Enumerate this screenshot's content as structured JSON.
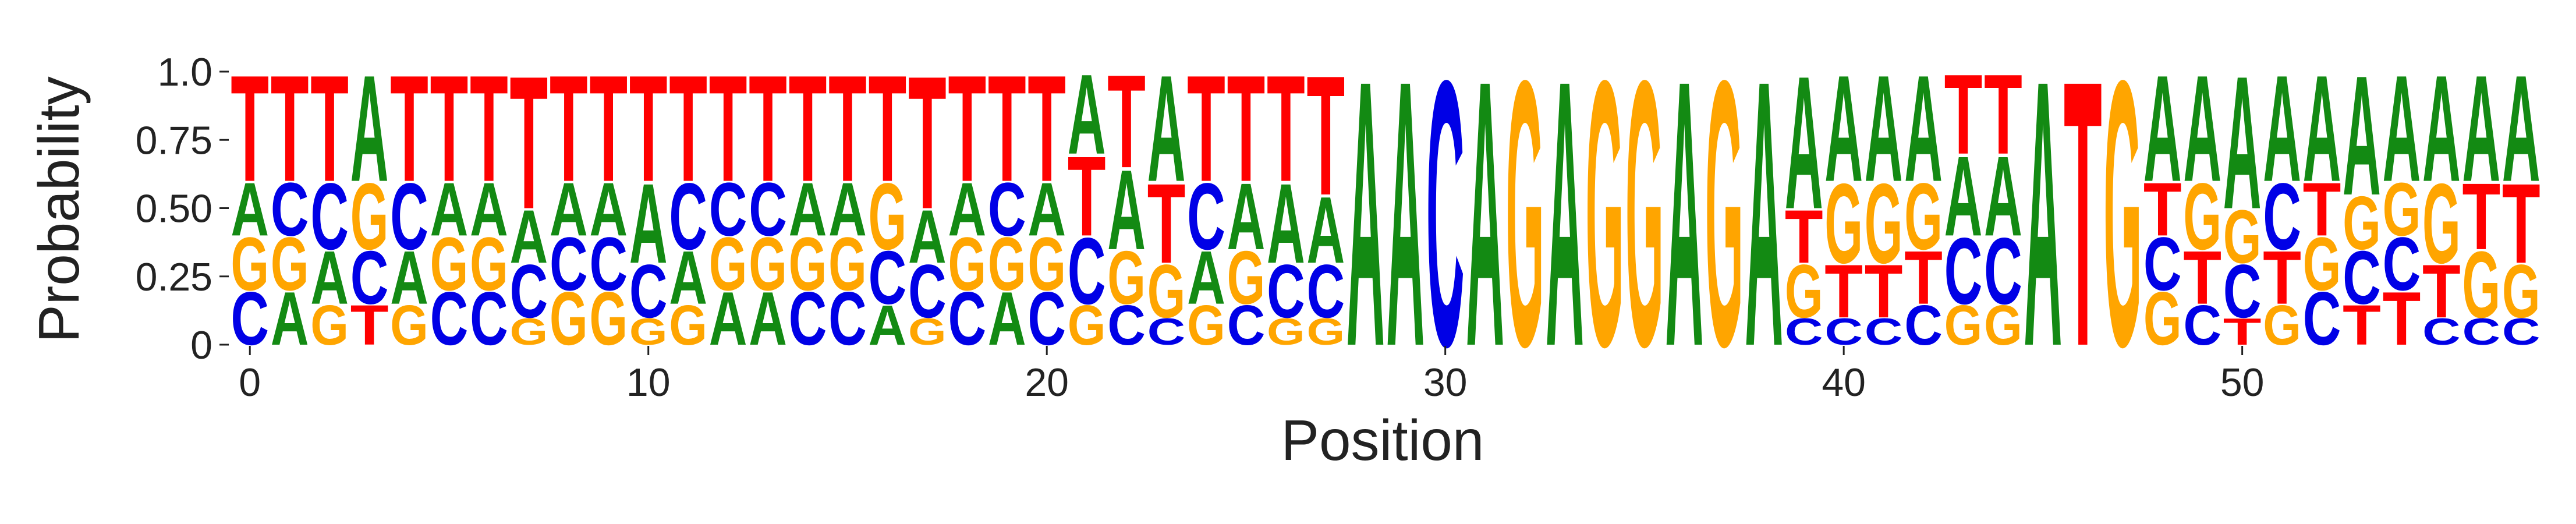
{
  "chart_data": {
    "type": "sequence-logo",
    "xlabel": "Position",
    "ylabel": "Probability",
    "x_range": [
      -0.5,
      57.5
    ],
    "ylim": [
      0,
      1
    ],
    "yticks": [
      "0",
      "0.25",
      "0.50",
      "0.75",
      "1.0"
    ],
    "ytick_values": [
      0,
      0.25,
      0.5,
      0.75,
      1.0
    ],
    "xticks": [
      "0",
      "10",
      "20",
      "30",
      "40",
      "50"
    ],
    "xtick_values": [
      0,
      10,
      20,
      30,
      40,
      50
    ],
    "grid": false,
    "colors": {
      "A": "#138a13",
      "C": "#0000e6",
      "G": "#ffa500",
      "T": "#ff0000"
    },
    "positions": [
      {
        "C": 0.2,
        "G": 0.2,
        "A": 0.2,
        "T": 0.4
      },
      {
        "A": 0.2,
        "G": 0.2,
        "C": 0.2,
        "T": 0.4
      },
      {
        "G": 0.15,
        "C": 0.25,
        "A": 0.2,
        "T": 0.4
      },
      {
        "T": 0.15,
        "G": 0.25,
        "C": 0.2,
        "A": 0.4
      },
      {
        "G": 0.15,
        "C": 0.25,
        "A": 0.2,
        "T": 0.4
      },
      {
        "C": 0.2,
        "G": 0.2,
        "A": 0.2,
        "T": 0.4
      },
      {
        "C": 0.2,
        "G": 0.2,
        "A": 0.2,
        "T": 0.4
      },
      {
        "G": 0.1,
        "C": 0.2,
        "A": 0.2,
        "T": 0.5
      },
      {
        "G": 0.2,
        "C": 0.2,
        "A": 0.2,
        "T": 0.4
      },
      {
        "G": 0.2,
        "C": 0.2,
        "A": 0.2,
        "T": 0.4
      },
      {
        "G": 0.1,
        "C": 0.2,
        "A": 0.3,
        "T": 0.4
      },
      {
        "G": 0.15,
        "A": 0.2,
        "C": 0.25,
        "T": 0.4
      },
      {
        "A": 0.2,
        "G": 0.2,
        "C": 0.2,
        "T": 0.4
      },
      {
        "A": 0.2,
        "G": 0.2,
        "C": 0.2,
        "T": 0.4
      },
      {
        "C": 0.2,
        "G": 0.2,
        "A": 0.2,
        "T": 0.4
      },
      {
        "C": 0.2,
        "G": 0.2,
        "A": 0.2,
        "T": 0.4
      },
      {
        "A": 0.15,
        "G": 0.25,
        "C": 0.2,
        "T": 0.4
      },
      {
        "G": 0.1,
        "C": 0.2,
        "A": 0.2,
        "T": 0.5
      },
      {
        "C": 0.2,
        "G": 0.2,
        "A": 0.2,
        "T": 0.4
      },
      {
        "A": 0.2,
        "G": 0.2,
        "C": 0.2,
        "T": 0.4
      },
      {
        "C": 0.2,
        "G": 0.2,
        "A": 0.2,
        "T": 0.4
      },
      {
        "G": 0.15,
        "C": 0.25,
        "T": 0.3,
        "A": 0.3
      },
      {
        "C": 0.15,
        "G": 0.2,
        "A": 0.3,
        "T": 0.35
      },
      {
        "C": 0.1,
        "G": 0.2,
        "T": 0.3,
        "A": 0.4
      },
      {
        "G": 0.15,
        "C": 0.25,
        "A": 0.2,
        "T": 0.4
      },
      {
        "C": 0.15,
        "G": 0.2,
        "A": 0.25,
        "T": 0.4
      },
      {
        "G": 0.1,
        "C": 0.2,
        "A": 0.3,
        "T": 0.4
      },
      {
        "G": 0.1,
        "C": 0.2,
        "A": 0.25,
        "T": 0.45
      },
      {
        "A": 1.0
      },
      {
        "A": 1.0
      },
      {
        "C": 1.0
      },
      {
        "A": 1.0
      },
      {
        "G": 1.0
      },
      {
        "A": 1.0
      },
      {
        "G": 1.0
      },
      {
        "G": 1.0
      },
      {
        "A": 1.0
      },
      {
        "G": 1.0
      },
      {
        "A": 1.0
      },
      {
        "C": 0.1,
        "G": 0.2,
        "T": 0.2,
        "A": 0.5
      },
      {
        "C": 0.1,
        "G": 0.3,
        "T": 0.2,
        "A": 0.4
      },
      {
        "C": 0.1,
        "G": 0.3,
        "T": 0.2,
        "A": 0.4
      },
      {
        "C": 0.15,
        "G": 0.25,
        "T": 0.2,
        "A": 0.4
      },
      {
        "G": 0.15,
        "C": 0.25,
        "A": 0.3,
        "T": 0.3
      },
      {
        "G": 0.15,
        "C": 0.25,
        "A": 0.3,
        "T": 0.3
      },
      {
        "A": 1.0
      },
      {
        "T": 1.0
      },
      {
        "G": 1.0
      },
      {
        "G": 0.2,
        "C": 0.2,
        "T": 0.2,
        "A": 0.4
      },
      {
        "C": 0.15,
        "G": 0.25,
        "T": 0.2,
        "A": 0.4
      },
      {
        "T": 0.1,
        "C": 0.2,
        "G": 0.2,
        "A": 0.5
      },
      {
        "G": 0.15,
        "C": 0.25,
        "T": 0.2,
        "A": 0.4
      },
      {
        "C": 0.2,
        "G": 0.2,
        "T": 0.2,
        "A": 0.4
      },
      {
        "T": 0.15,
        "C": 0.2,
        "G": 0.2,
        "A": 0.45
      },
      {
        "T": 0.2,
        "C": 0.2,
        "G": 0.2,
        "A": 0.4
      },
      {
        "C": 0.1,
        "T": 0.2,
        "G": 0.3,
        "A": 0.4
      },
      {
        "C": 0.1,
        "G": 0.25,
        "T": 0.25,
        "A": 0.4
      },
      {
        "C": 0.1,
        "G": 0.2,
        "T": 0.3,
        "A": 0.4
      }
    ]
  }
}
